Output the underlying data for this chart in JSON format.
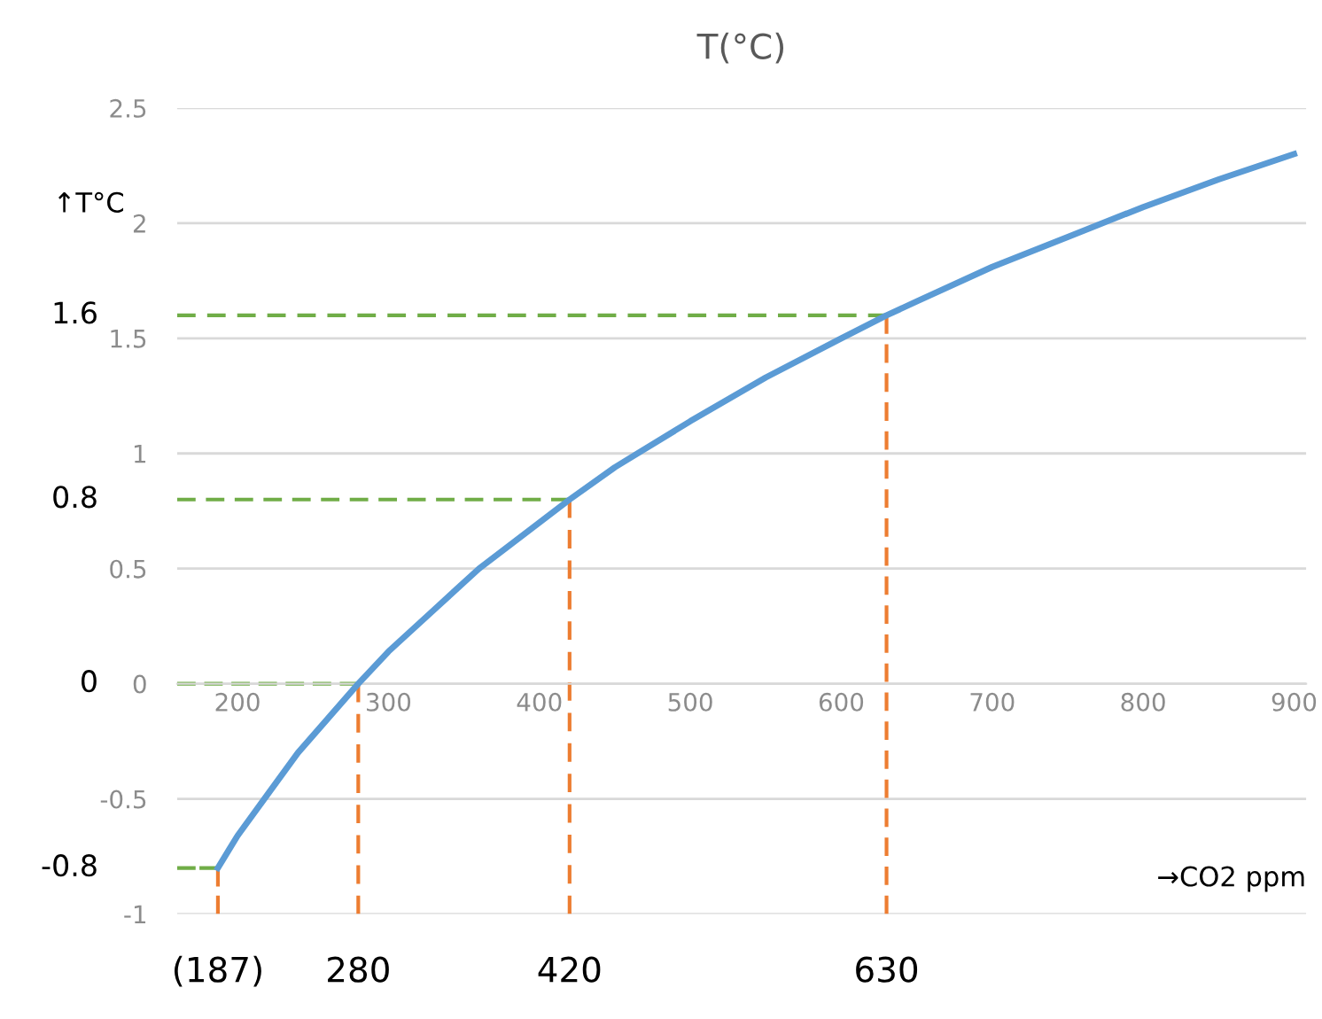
{
  "chart_data": {
    "type": "line",
    "title": "T(°C)",
    "xlabel": "→CO2 ppm",
    "ylabel": "↑T°C",
    "x": [
      187,
      200,
      220,
      240,
      260,
      280,
      300,
      330,
      360,
      400,
      420,
      450,
      500,
      550,
      600,
      630,
      650,
      700,
      750,
      800,
      850,
      900
    ],
    "series": [
      {
        "color": "#5b9bd5",
        "values": [
          -0.8,
          -0.66,
          -0.48,
          -0.3,
          -0.15,
          0,
          0.14,
          0.32,
          0.5,
          0.7,
          0.8,
          0.94,
          1.14,
          1.33,
          1.5,
          1.6,
          1.66,
          1.81,
          1.94,
          2.07,
          2.19,
          2.3
        ]
      },
      {
        "color": "#70ad47",
        "line_style": "dashed",
        "x": [
          160,
          187
        ],
        "values": [
          -0.8,
          -0.8
        ]
      },
      {
        "color": "#70ad47",
        "line_style": "dashed",
        "x": [
          160,
          280
        ],
        "values": [
          0,
          0
        ]
      },
      {
        "color": "#70ad47",
        "line_style": "dashed",
        "x": [
          160,
          420
        ],
        "values": [
          0.8,
          0.8
        ]
      },
      {
        "color": "#70ad47",
        "line_style": "dashed",
        "x": [
          160,
          630
        ],
        "values": [
          1.6,
          1.6
        ]
      },
      {
        "color": "#ed7d31",
        "line_style": "dashed",
        "x": [
          187,
          187
        ],
        "values": [
          -1,
          -0.8
        ]
      },
      {
        "color": "#ed7d31",
        "line_style": "dashed",
        "x": [
          280,
          280
        ],
        "values": [
          -1,
          0
        ]
      },
      {
        "color": "#ed7d31",
        "line_style": "dashed",
        "x": [
          420,
          420
        ],
        "values": [
          -1,
          0.8
        ]
      },
      {
        "color": "#ed7d31",
        "line_style": "dashed",
        "x": [
          630,
          630
        ],
        "values": [
          -1,
          1.6
        ]
      }
    ],
    "xlim": [
      160,
      908
    ],
    "xticks": [
      200,
      300,
      400,
      500,
      600,
      700,
      800,
      900
    ],
    "ylim": [
      -1,
      2.5
    ],
    "yticks": [
      -1,
      -0.5,
      0,
      0.5,
      1,
      1.5,
      2,
      2.5
    ],
    "grid": "y",
    "marker": "none",
    "line_style": "solid",
    "annotations": [
      {
        "text": "-0.8",
        "x": 160,
        "y": -0.8
      },
      {
        "text": "0",
        "x": 160,
        "y": 0
      },
      {
        "text": "0.8",
        "x": 160,
        "y": 0.8
      },
      {
        "text": "1.6",
        "x": 160,
        "y": 1.6
      },
      {
        "text": "(187)",
        "x": 187,
        "y": -1
      },
      {
        "text": "280",
        "x": 280,
        "y": -1
      },
      {
        "text": "420",
        "x": 420,
        "y": -1
      },
      {
        "text": "630",
        "x": 630,
        "y": -1
      }
    ]
  }
}
